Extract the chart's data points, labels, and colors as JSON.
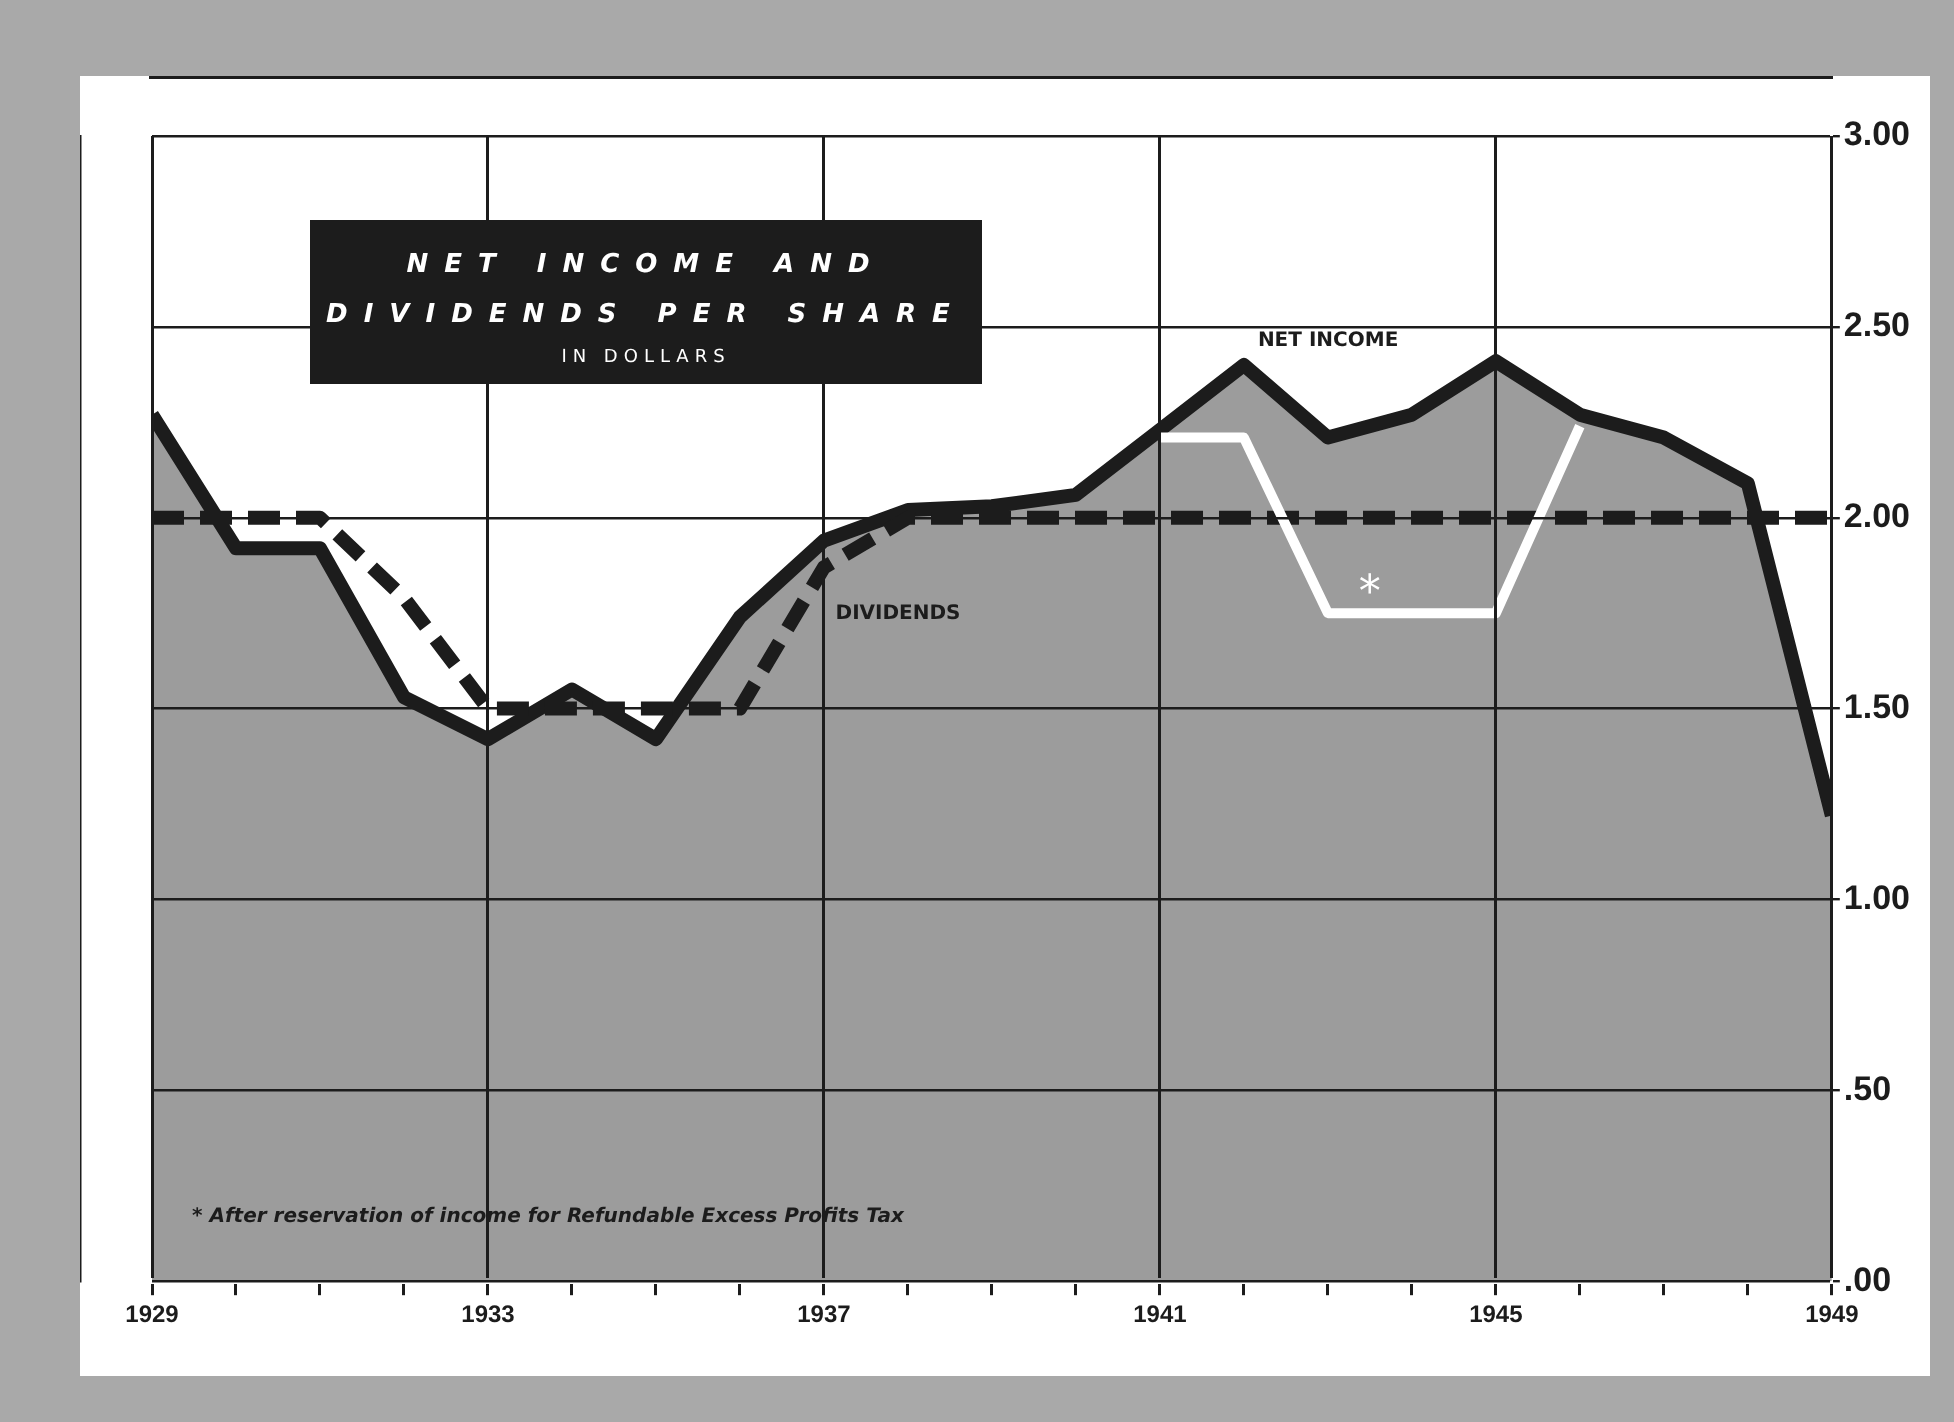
{
  "chart_data": {
    "type": "line",
    "title": "NET INCOME AND DIVIDENDS PER SHARE",
    "subtitle": "IN DOLLARS",
    "x": [
      1929,
      1930,
      1931,
      1932,
      1933,
      1934,
      1935,
      1936,
      1937,
      1938,
      1939,
      1940,
      1941,
      1942,
      1943,
      1944,
      1945,
      1946,
      1947,
      1948,
      1949
    ],
    "series": [
      {
        "name": "NET INCOME",
        "type": "area",
        "color": "#1c1c1c",
        "line_style": "solid",
        "values": [
          2.27,
          1.92,
          1.92,
          1.53,
          1.42,
          1.55,
          1.42,
          1.74,
          1.94,
          2.02,
          2.03,
          2.06,
          2.23,
          2.4,
          2.21,
          2.27,
          2.41,
          2.27,
          2.21,
          2.09,
          1.22
        ]
      },
      {
        "name": "DIVIDENDS",
        "type": "line",
        "color": "#1c1c1c",
        "line_style": "dashed",
        "values": [
          2.0,
          2.0,
          2.0,
          1.79,
          1.5,
          1.5,
          1.5,
          1.5,
          1.87,
          2.0,
          2.0,
          2.0,
          2.0,
          2.0,
          2.0,
          2.0,
          2.0,
          2.0,
          2.0,
          2.0,
          2.0
        ]
      },
      {
        "type": "line",
        "color": "#ffffff",
        "line_style": "solid",
        "x": [
          1941,
          1942,
          1943,
          1944,
          1945,
          1946
        ],
        "values": [
          2.21,
          2.21,
          1.75,
          1.75,
          1.75,
          2.24
        ]
      }
    ],
    "xlim": [
      1929,
      1949
    ],
    "xticks": [
      1929,
      {
        "value": 1930,
        "label": null
      },
      {
        "value": 1931,
        "label": null
      },
      {
        "value": 1932,
        "label": null
      },
      1933,
      {
        "value": 1934,
        "label": null
      },
      {
        "value": 1935,
        "label": null
      },
      {
        "value": 1936,
        "label": null
      },
      1937,
      {
        "value": 1938,
        "label": null
      },
      {
        "value": 1939,
        "label": null
      },
      {
        "value": 1940,
        "label": null
      },
      1941,
      {
        "value": 1942,
        "label": null
      },
      {
        "value": 1943,
        "label": null
      },
      {
        "value": 1944,
        "label": null
      },
      1945,
      {
        "value": 1946,
        "label": null
      },
      {
        "value": 1947,
        "label": null
      },
      {
        "value": 1948,
        "label": null
      },
      1949
    ],
    "ylim": [
      0,
      3
    ],
    "yticks": [
      {
        "value": 0,
        "label": ".00"
      },
      {
        "value": 0.5,
        "label": ".50"
      },
      {
        "value": 1,
        "label": "1.00"
      },
      {
        "value": 1.5,
        "label": "1.50"
      },
      {
        "value": 2,
        "label": "2.00"
      },
      {
        "value": 2.5,
        "label": "2.50"
      },
      {
        "value": 3,
        "label": "3.00"
      }
    ],
    "grid": true,
    "legend": false,
    "marker": "none",
    "annotations": [
      "*",
      "* After reservation of income for Refundable Excess Profits Tax"
    ]
  }
}
